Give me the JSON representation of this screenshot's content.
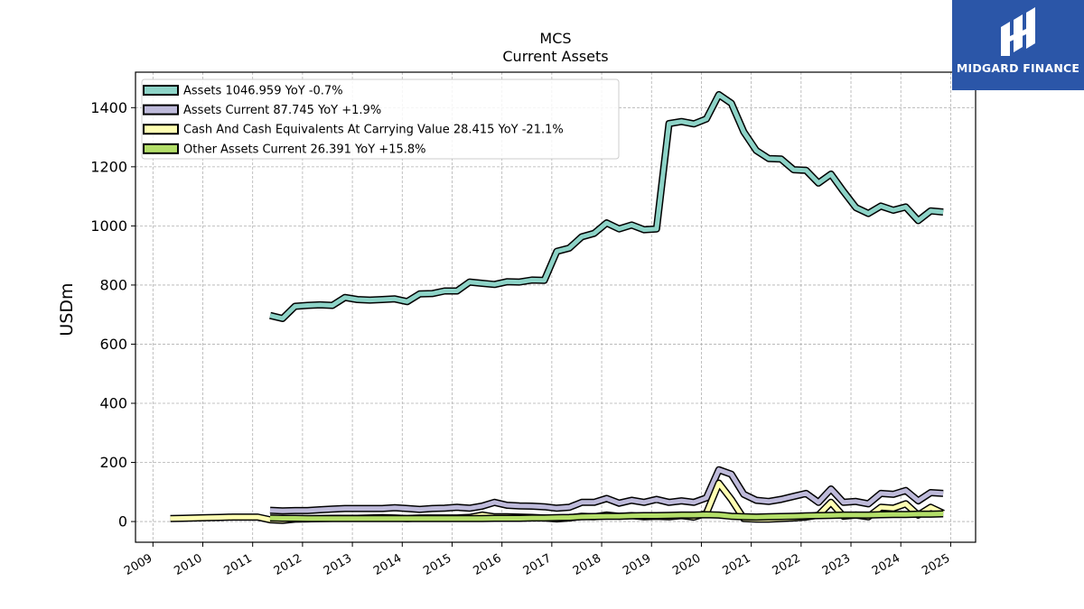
{
  "brand": {
    "name": "MIDGARD FINANCE",
    "color": "#2b56a8"
  },
  "chart_data": {
    "type": "line",
    "title": "MCS",
    "subtitle": "Current  Assets",
    "ylabel": "USDm",
    "xlim": [
      2008.65,
      2025.5
    ],
    "ylim": [
      -70,
      1520
    ],
    "xticks": [
      2009,
      2010,
      2011,
      2012,
      2013,
      2014,
      2015,
      2016,
      2017,
      2018,
      2019,
      2020,
      2021,
      2022,
      2023,
      2024,
      2025
    ],
    "yticks": [
      0,
      200,
      400,
      600,
      800,
      1000,
      1200,
      1400
    ],
    "grid": true,
    "legend_position": "top-left",
    "series": [
      {
        "name": "Assets  1046.959 YoY -0.7%",
        "color": "#8dd3c7",
        "x": [
          2011.35,
          2011.6,
          2011.85,
          2012.1,
          2012.35,
          2012.6,
          2012.85,
          2013.1,
          2013.35,
          2013.6,
          2013.85,
          2014.1,
          2014.35,
          2014.6,
          2014.85,
          2015.1,
          2015.35,
          2015.6,
          2015.85,
          2016.1,
          2016.35,
          2016.6,
          2016.85,
          2017.1,
          2017.35,
          2017.6,
          2017.85,
          2018.1,
          2018.35,
          2018.6,
          2018.85,
          2019.1,
          2019.35,
          2019.6,
          2019.85,
          2020.1,
          2020.35,
          2020.6,
          2020.85,
          2021.1,
          2021.35,
          2021.6,
          2021.85,
          2022.1,
          2022.35,
          2022.6,
          2022.85,
          2023.1,
          2023.35,
          2023.6,
          2023.85,
          2024.1,
          2024.35,
          2024.6,
          2024.85
        ],
        "y": [
          697,
          687,
          728,
          731,
          733,
          731,
          758,
          751,
          749,
          751,
          753,
          744,
          770,
          771,
          780,
          780,
          810,
          806,
          802,
          811,
          810,
          817,
          816,
          914,
          925,
          963,
          975,
          1010,
          990,
          1003,
          987,
          990,
          1346,
          1353,
          1345,
          1362,
          1444,
          1415,
          1318,
          1255,
          1228,
          1226,
          1190,
          1188,
          1145,
          1175,
          1117,
          1062,
          1042,
          1067,
          1053,
          1064,
          1018,
          1051,
          1047
        ]
      },
      {
        "name": "Assets Current  87.745 YoY +1.9%",
        "color": "#bebada",
        "x": [
          2011.35,
          2011.6,
          2011.85,
          2012.1,
          2012.35,
          2012.6,
          2012.85,
          2013.1,
          2013.35,
          2013.6,
          2013.85,
          2014.1,
          2014.35,
          2014.6,
          2014.85,
          2015.1,
          2015.35,
          2015.6,
          2015.85,
          2016.1,
          2016.35,
          2016.6,
          2016.85,
          2017.1,
          2017.35,
          2017.6,
          2017.85,
          2018.1,
          2018.35,
          2018.6,
          2018.85,
          2019.1,
          2019.35,
          2019.6,
          2019.85,
          2020.1,
          2020.35,
          2020.6,
          2020.85,
          2021.1,
          2021.35,
          2021.6,
          2021.85,
          2022.1,
          2022.35,
          2022.6,
          2022.85,
          2023.1,
          2023.35,
          2023.6,
          2023.85,
          2024.1,
          2024.35,
          2024.6,
          2024.85
        ],
        "y": [
          38,
          36,
          37,
          37,
          40,
          42,
          44,
          44,
          44,
          44,
          47,
          44,
          41,
          44,
          45,
          48,
          45,
          52,
          65,
          55,
          53,
          52,
          50,
          45,
          48,
          65,
          65,
          78,
          62,
          72,
          65,
          75,
          65,
          70,
          65,
          80,
          175,
          160,
          92,
          72,
          68,
          75,
          85,
          95,
          65,
          110,
          65,
          68,
          60,
          95,
          92,
          105,
          70,
          98,
          95
        ]
      },
      {
        "name": "Cash And Cash Equivalents At Carrying Value  28.415 YoY -21.1%",
        "color": "#ffffb3",
        "x": [
          2009.35,
          2009.6,
          2009.85,
          2010.1,
          2010.35,
          2010.6,
          2010.85,
          2011.1,
          2011.35,
          2011.6,
          2011.85,
          2012.1,
          2012.35,
          2012.6,
          2012.85,
          2013.1,
          2013.35,
          2013.6,
          2013.85,
          2014.1,
          2014.35,
          2014.6,
          2014.85,
          2015.1,
          2015.35,
          2015.6,
          2015.85,
          2016.1,
          2016.35,
          2016.6,
          2016.85,
          2017.1,
          2017.35,
          2017.6,
          2017.85,
          2018.1,
          2018.35,
          2018.6,
          2018.85,
          2019.1,
          2019.35,
          2019.6,
          2019.85,
          2020.1,
          2020.35,
          2020.6,
          2020.85,
          2021.1,
          2021.35,
          2021.6,
          2021.85,
          2022.1,
          2022.35,
          2022.6,
          2022.85,
          2023.1,
          2023.35,
          2023.6,
          2023.85,
          2024.1,
          2024.35,
          2024.6,
          2024.85
        ],
        "y": [
          10,
          11,
          12,
          13,
          14,
          15,
          15,
          15,
          6,
          4,
          8,
          9,
          10,
          11,
          11,
          11,
          12,
          13,
          12,
          10,
          12,
          12,
          12,
          12,
          14,
          22,
          16,
          16,
          15,
          14,
          12,
          9,
          12,
          18,
          16,
          22,
          18,
          20,
          16,
          18,
          16,
          20,
          15,
          28,
          130,
          75,
          10,
          8,
          8,
          10,
          12,
          15,
          22,
          65,
          18,
          22,
          16,
          48,
          45,
          60,
          22,
          48,
          28
        ]
      },
      {
        "name": "Other Assets Current  26.391 YoY +15.8%",
        "color": "#b3de69",
        "x": [
          2011.35,
          2011.6,
          2011.85,
          2012.1,
          2012.35,
          2012.6,
          2012.85,
          2013.1,
          2013.35,
          2013.6,
          2013.85,
          2014.1,
          2014.35,
          2014.6,
          2014.85,
          2015.1,
          2015.35,
          2015.6,
          2015.85,
          2016.1,
          2016.35,
          2016.6,
          2016.85,
          2017.1,
          2017.35,
          2017.6,
          2017.85,
          2018.1,
          2018.35,
          2018.6,
          2018.85,
          2019.1,
          2019.35,
          2019.6,
          2019.85,
          2020.1,
          2020.35,
          2020.6,
          2020.85,
          2021.1,
          2021.35,
          2021.6,
          2021.85,
          2022.1,
          2022.35,
          2022.6,
          2022.85,
          2023.1,
          2023.35,
          2023.6,
          2023.85,
          2024.1,
          2024.35,
          2024.6,
          2024.85
        ],
        "y": [
          12,
          11,
          11,
          10,
          10,
          10,
          10,
          10,
          10,
          10,
          10,
          10,
          10,
          10,
          10,
          10,
          10,
          10,
          11,
          11,
          11,
          12,
          12,
          13,
          14,
          16,
          17,
          18,
          18,
          19,
          20,
          20,
          21,
          22,
          22,
          23,
          22,
          18,
          16,
          15,
          16,
          17,
          18,
          19,
          20,
          21,
          22,
          22,
          22,
          23,
          24,
          24,
          25,
          25,
          26
        ]
      }
    ]
  }
}
